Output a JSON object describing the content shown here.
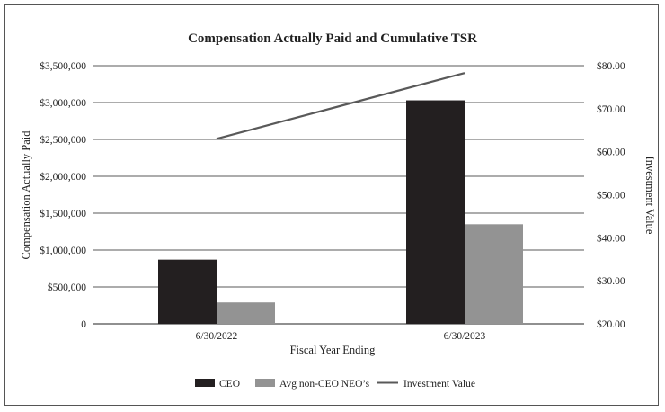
{
  "chart_data": {
    "type": "bar",
    "title": "Compensation Actually Paid and Cumulative TSR",
    "xlabel": "Fiscal Year Ending",
    "ylabel": "Compensation Actually Paid",
    "y2label": "Investment Value",
    "categories": [
      "6/30/2022",
      "6/30/2023"
    ],
    "ylim": [
      0,
      3500000
    ],
    "y2lim": [
      20,
      80
    ],
    "yticks": [
      "0",
      "$500,000",
      "$1,000,000",
      "$1,500,000",
      "$2,000,000",
      "$2,500,000",
      "$3,000,000",
      "$3,500,000"
    ],
    "y2ticks": [
      "$20.00",
      "$30.00",
      "$40.00",
      "$50.00",
      "$60.00",
      "$70.00",
      "$80.00"
    ],
    "grid": true,
    "legend_position": "bottom",
    "series": [
      {
        "name": "CEO",
        "type": "bar",
        "color": "#231f20",
        "values": [
          870000,
          3030000
        ]
      },
      {
        "name": "Avg non-CEO NEO’s",
        "type": "bar",
        "color": "#939393",
        "values": [
          290000,
          1350000
        ]
      },
      {
        "name": "Investment Value",
        "type": "line",
        "axis": "right",
        "color": "#595959",
        "values": [
          63.0,
          78.3
        ]
      }
    ]
  }
}
